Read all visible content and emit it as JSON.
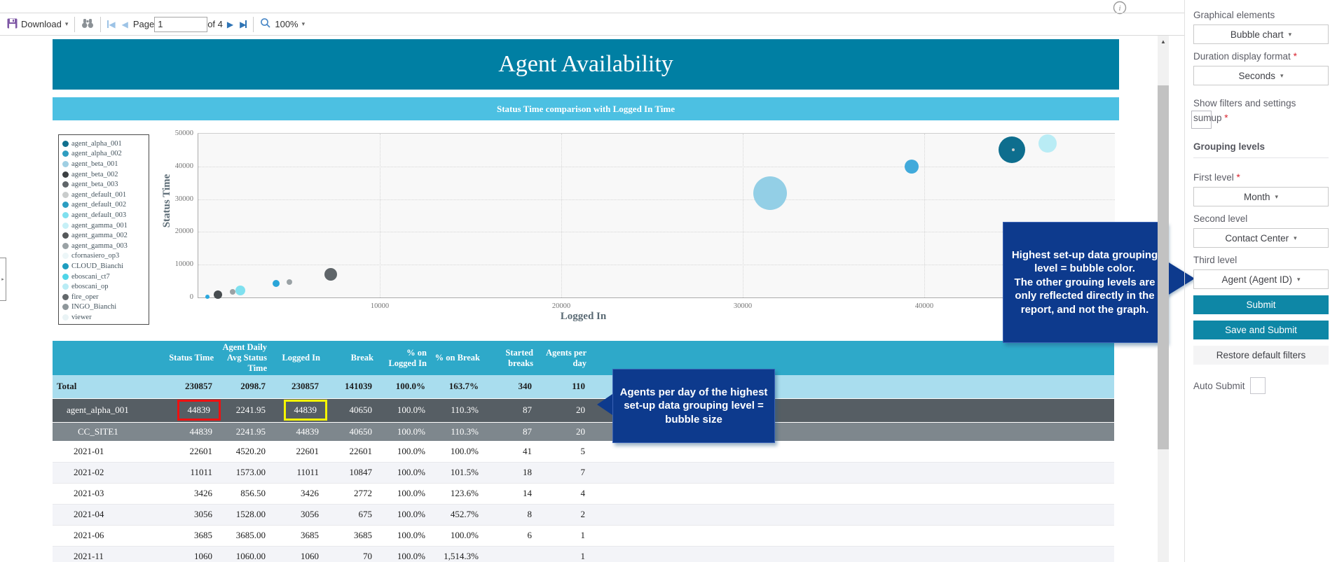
{
  "toolbar": {
    "download_label": "Download",
    "page_label": "Page",
    "page_value": "1",
    "page_total_label": "of 4",
    "zoom_label": "100%"
  },
  "report": {
    "title": "Agent Availability",
    "subtitle": "Status Time comparison with Logged In Time",
    "legend": [
      {
        "label": "agent_alpha_001",
        "color": "#10708e"
      },
      {
        "label": "agent_alpha_002",
        "color": "#2f9dc0"
      },
      {
        "label": "agent_beta_001",
        "color": "#9fcfe3"
      },
      {
        "label": "agent_beta_002",
        "color": "#3c4043"
      },
      {
        "label": "agent_beta_003",
        "color": "#5f6569"
      },
      {
        "label": "agent_default_001",
        "color": "#c9cccc"
      },
      {
        "label": "agent_default_002",
        "color": "#2b9dc1"
      },
      {
        "label": "agent_default_003",
        "color": "#7fe0ef"
      },
      {
        "label": "agent_gamma_001",
        "color": "#c6f0f7"
      },
      {
        "label": "agent_gamma_002",
        "color": "#55585a"
      },
      {
        "label": "agent_gamma_003",
        "color": "#9aa2a5"
      },
      {
        "label": "cfornasiero_op3",
        "color": "#ecf6f8"
      },
      {
        "label": "CLOUD_Bianchi",
        "color": "#1d9dbf"
      },
      {
        "label": "eboscani_ct7",
        "color": "#4fd5e8"
      },
      {
        "label": "eboscani_op",
        "color": "#b9ecf5"
      },
      {
        "label": "fire_oper",
        "color": "#63686b"
      },
      {
        "label": "INGO_Bianchi",
        "color": "#8e979b"
      },
      {
        "label": "viewer",
        "color": "#e9f3f5"
      }
    ],
    "chart_data": {
      "type": "scatter",
      "subtype": "bubble",
      "xlabel": "Logged In",
      "ylabel": "Status Time",
      "x_ticks": [
        10000,
        20000,
        30000,
        40000
      ],
      "y_ticks": [
        0,
        10000,
        20000,
        30000,
        40000,
        50000
      ],
      "xlim": [
        0,
        50500
      ],
      "ylim": [
        0,
        50000
      ],
      "grid": "dotted",
      "legend_position": "left",
      "bubbles": [
        {
          "x": 500,
          "y": 300,
          "r": 3,
          "color": "#29a8df"
        },
        {
          "x": 1100,
          "y": 900,
          "r": 6,
          "color": "#474c4f"
        },
        {
          "x": 1900,
          "y": 1750,
          "r": 4,
          "color": "#9aa2a5"
        },
        {
          "x": 2300,
          "y": 2200,
          "r": 7,
          "color": "#7fe0ef"
        },
        {
          "x": 4300,
          "y": 4200,
          "r": 5,
          "color": "#2aa5d8"
        },
        {
          "x": 5000,
          "y": 4800,
          "r": 4,
          "color": "#9aa2a5"
        },
        {
          "x": 7300,
          "y": 7100,
          "r": 9,
          "color": "#5f6569"
        },
        {
          "x": 31500,
          "y": 31800,
          "r": 24,
          "color": "#93cfe6"
        },
        {
          "x": 39300,
          "y": 40000,
          "r": 10,
          "color": "#41aadb"
        },
        {
          "x": 44839,
          "y": 45000,
          "r": 19,
          "color": "#0e6e8e"
        },
        {
          "x": 46800,
          "y": 47000,
          "r": 13,
          "color": "#b9ecf5"
        },
        {
          "x": 44900,
          "y": 45100,
          "r": 2,
          "color": "#c9cccc"
        }
      ]
    },
    "table": {
      "headers": [
        "",
        "Status Time",
        "Agent Daily Avg Status Time",
        "Logged In",
        "Break",
        "% on Logged In",
        "% on Break",
        "Started breaks",
        "Agents per day"
      ],
      "rows": [
        {
          "label": "Total",
          "type": "total",
          "values": [
            "230857",
            "2098.7",
            "230857",
            "141039",
            "100.0%",
            "163.7%",
            "340",
            "110"
          ]
        },
        {
          "label": "agent_alpha_001",
          "type": "agent",
          "values": [
            "44839",
            "2241.95",
            "44839",
            "40650",
            "100.0%",
            "110.3%",
            "87",
            "20"
          ],
          "highlight": {
            "0": "red",
            "2": "yellow"
          }
        },
        {
          "label": "CC_SITE1",
          "type": "site",
          "values": [
            "44839",
            "2241.95",
            "44839",
            "40650",
            "100.0%",
            "110.3%",
            "87",
            "20"
          ]
        },
        {
          "label": "2021-01",
          "type": "month",
          "values": [
            "22601",
            "4520.20",
            "22601",
            "22601",
            "100.0%",
            "100.0%",
            "41",
            "5"
          ]
        },
        {
          "label": "2021-02",
          "type": "month",
          "values": [
            "11011",
            "1573.00",
            "11011",
            "10847",
            "100.0%",
            "101.5%",
            "18",
            "7"
          ]
        },
        {
          "label": "2021-03",
          "type": "month",
          "values": [
            "3426",
            "856.50",
            "3426",
            "2772",
            "100.0%",
            "123.6%",
            "14",
            "4"
          ]
        },
        {
          "label": "2021-04",
          "type": "month",
          "values": [
            "3056",
            "1528.00",
            "3056",
            "675",
            "100.0%",
            "452.7%",
            "8",
            "2"
          ]
        },
        {
          "label": "2021-06",
          "type": "month",
          "values": [
            "3685",
            "3685.00",
            "3685",
            "3685",
            "100.0%",
            "100.0%",
            "6",
            "1"
          ]
        },
        {
          "label": "2021-11",
          "type": "month",
          "values": [
            "1060",
            "1060.00",
            "1060",
            "70",
            "100.0%",
            "1,514.3%",
            "",
            "1"
          ]
        }
      ]
    }
  },
  "callouts": {
    "bubble_color_note": [
      "Highest set-up data grouping level = bubble color.",
      "The other grouing levels are only reflected directly in the report, and not the graph."
    ],
    "bubble_size_note": "Agents per day of the highest set-up data grouping level = bubble size"
  },
  "sidebar": {
    "graphical_elements_label": "Graphical elements",
    "graphical_elements_value": "Bubble chart",
    "duration_label": "Duration display format",
    "duration_value": "Seconds",
    "show_filters_label_line1": "Show filters and settings",
    "show_filters_label_line2": "sumup",
    "grouping_levels_label": "Grouping levels",
    "first_level_label": "First level",
    "first_level_value": "Month",
    "second_level_label": "Second level",
    "second_level_value": "Contact Center",
    "third_level_label": "Third level",
    "third_level_value": "Agent (Agent ID)",
    "submit_label": "Submit",
    "save_submit_label": "Save and Submit",
    "restore_label": "Restore default filters",
    "auto_submit_label": "Auto Submit",
    "required_marker": "*",
    "caret_glyph": "▾"
  },
  "colors": {
    "title_bar": "#007fa3",
    "subtitle_bar": "#4cc0e2",
    "table_header": "#2ea9c9",
    "total_row": "#a9ddee",
    "agent_row": "#565e64",
    "site_row": "#7e878d",
    "callout": "#0d3a8d",
    "sidebar_button": "#0e87a6",
    "highlight_red": "#ee1111",
    "highlight_yellow": "#f5f500"
  }
}
